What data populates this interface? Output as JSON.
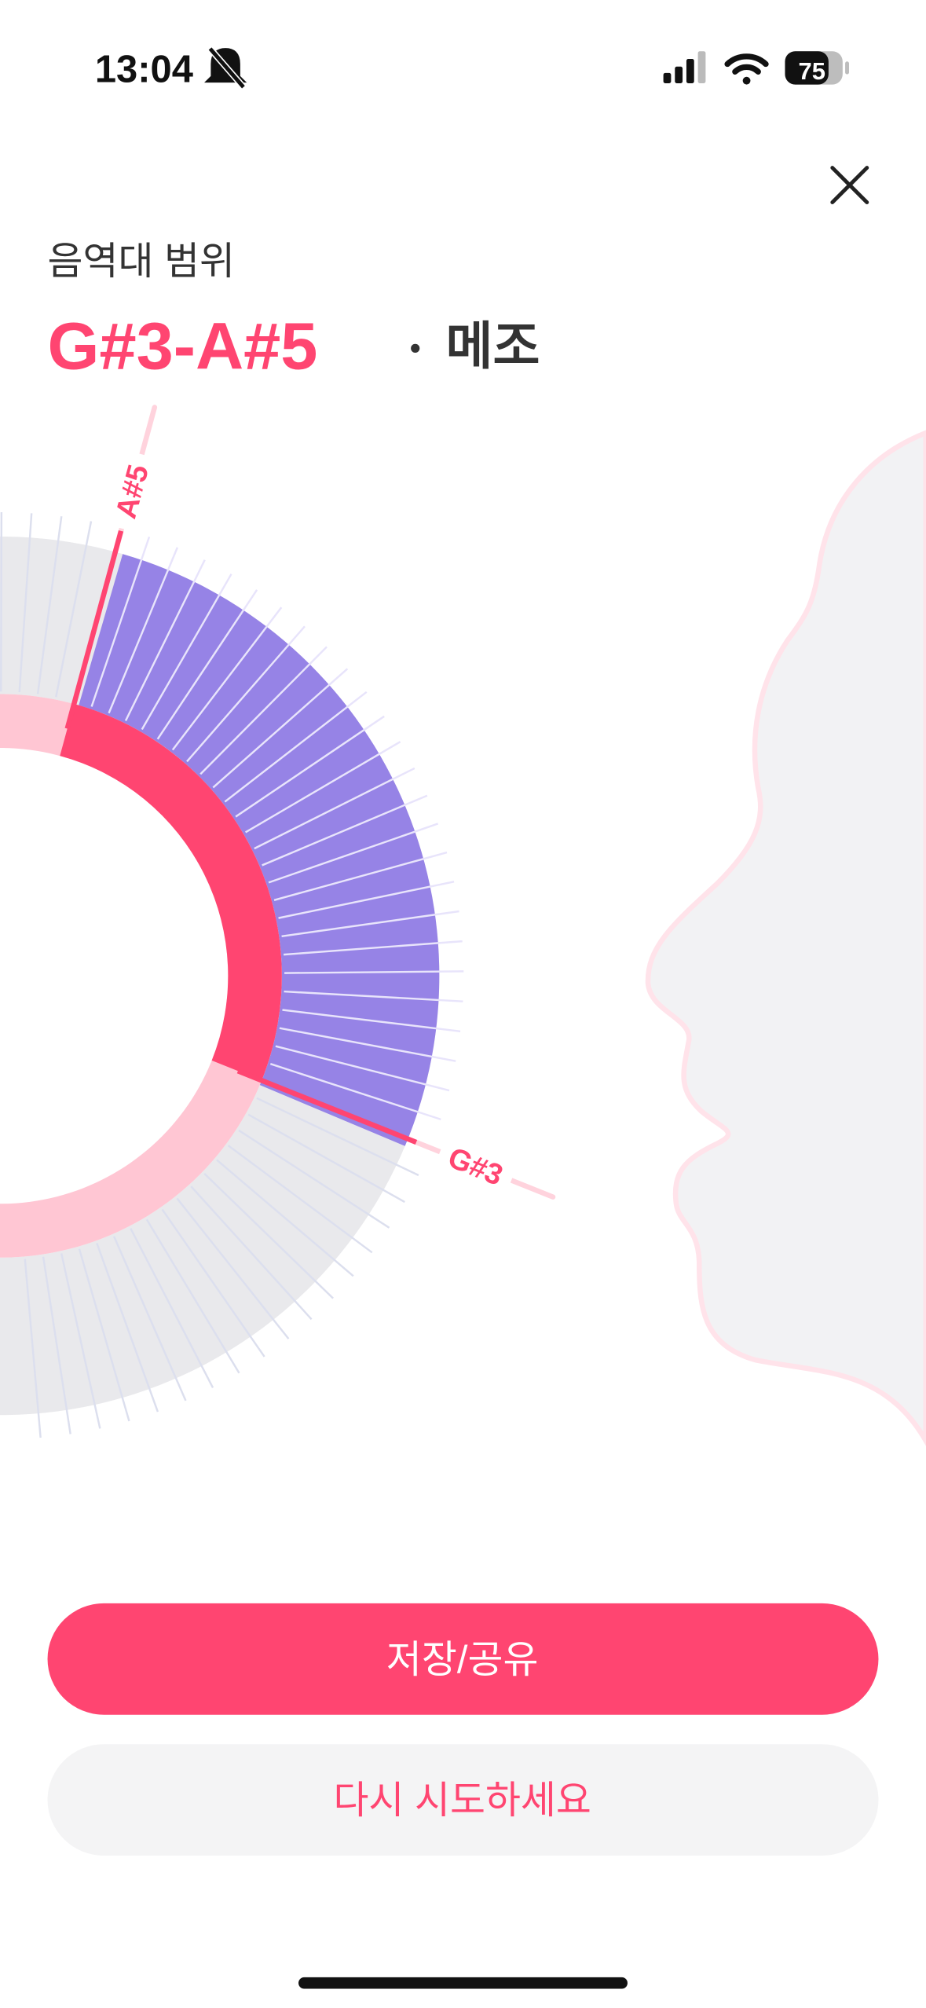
{
  "status_bar": {
    "time": "13:04",
    "battery": "75"
  },
  "header": {
    "title": "음역대 범위",
    "range": "G#3-A#5",
    "separator": "•",
    "voice_type": "메조"
  },
  "dial": {
    "top_label": "A#5",
    "bottom_label": "G#3"
  },
  "buttons": [
    {
      "label": "저장/공유"
    },
    {
      "label": "다시 시도하세요"
    }
  ]
}
